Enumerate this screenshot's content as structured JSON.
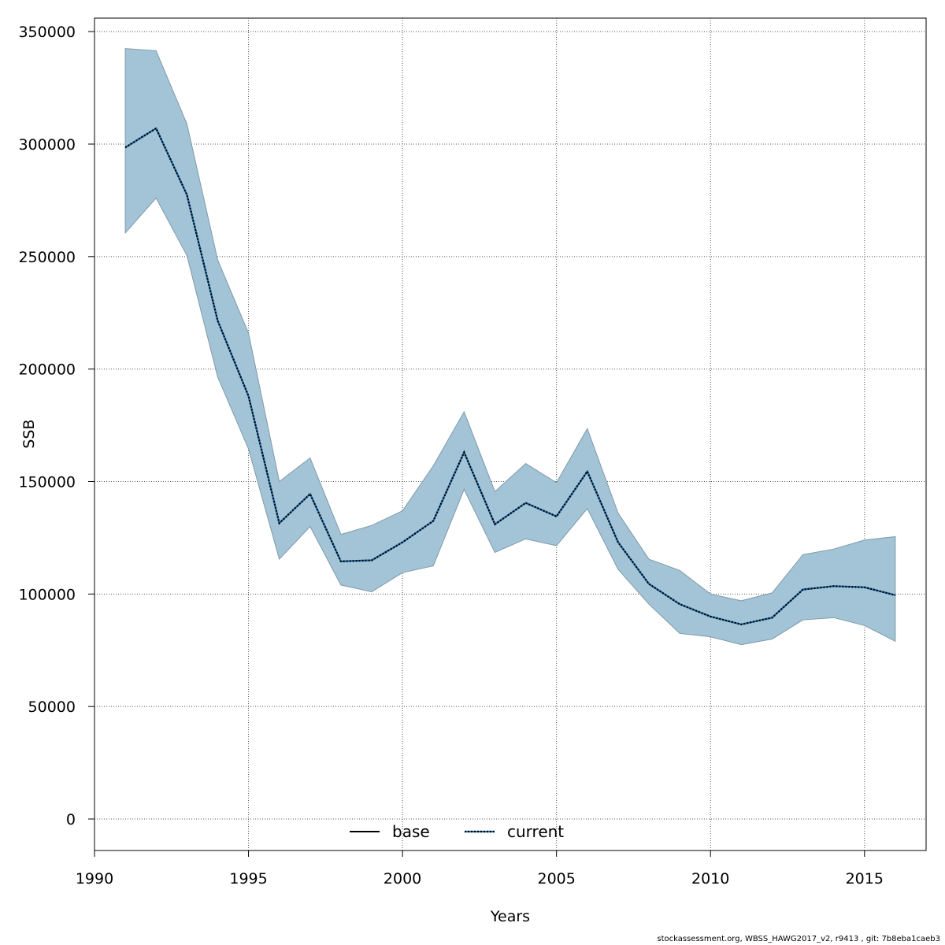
{
  "colors": {
    "band_fill": "#a3c4d6",
    "band_stroke": "#7f9aa8",
    "base_line": "#000000",
    "current_line_dark": "#000000",
    "current_line_light": "#1f6fb4",
    "grid": "#555555"
  },
  "chart_data": {
    "type": "line",
    "xlabel": "Years",
    "ylabel": "SSB",
    "xlim": [
      1990,
      2017
    ],
    "ylim": [
      -14000,
      356000
    ],
    "xticks": [
      1990,
      1995,
      2000,
      2005,
      2010,
      2015
    ],
    "yticks": [
      0,
      50000,
      100000,
      150000,
      200000,
      250000,
      300000,
      350000
    ],
    "grid": true,
    "legend_position": "bottom-center",
    "x": [
      1991,
      1992,
      1993,
      1994,
      1995,
      1996,
      1997,
      1998,
      1999,
      2000,
      2001,
      2002,
      2003,
      2004,
      2005,
      2006,
      2007,
      2008,
      2009,
      2010,
      2011,
      2012,
      2013,
      2014,
      2015,
      2016
    ],
    "series": [
      {
        "name": "base",
        "style": "solid",
        "values": [
          298500,
          307000,
          277500,
          221500,
          188000,
          131500,
          144500,
          114500,
          115000,
          123000,
          132500,
          163000,
          131000,
          140500,
          134500,
          154500,
          123000,
          104500,
          95500,
          90000,
          86500,
          89500,
          102000,
          103500,
          103000,
          99500
        ]
      },
      {
        "name": "current",
        "style": "dotted",
        "values": [
          298500,
          307000,
          277500,
          221500,
          188000,
          131500,
          144500,
          114500,
          115000,
          123000,
          132500,
          163000,
          131000,
          140500,
          134500,
          154500,
          123000,
          104500,
          95500,
          90000,
          86500,
          89500,
          102000,
          103500,
          103000,
          99500
        ]
      }
    ],
    "confidence_band": {
      "lower": [
        260500,
        276000,
        250500,
        196500,
        164500,
        115500,
        130000,
        104000,
        101000,
        109500,
        112500,
        146500,
        118500,
        124500,
        121500,
        138000,
        111000,
        95500,
        82500,
        81000,
        77500,
        80000,
        88500,
        89500,
        86000,
        79000
      ],
      "upper": [
        342500,
        341500,
        309000,
        248500,
        216000,
        150000,
        160500,
        126500,
        130500,
        137000,
        157000,
        181000,
        145500,
        158000,
        149500,
        173500,
        136000,
        115500,
        110500,
        100000,
        97000,
        100500,
        117500,
        120000,
        124000,
        125500
      ]
    }
  },
  "footer": "stockassessment.org, WBSS_HAWG2017_v2, r9413 , git: 7b8eba1caeb3"
}
